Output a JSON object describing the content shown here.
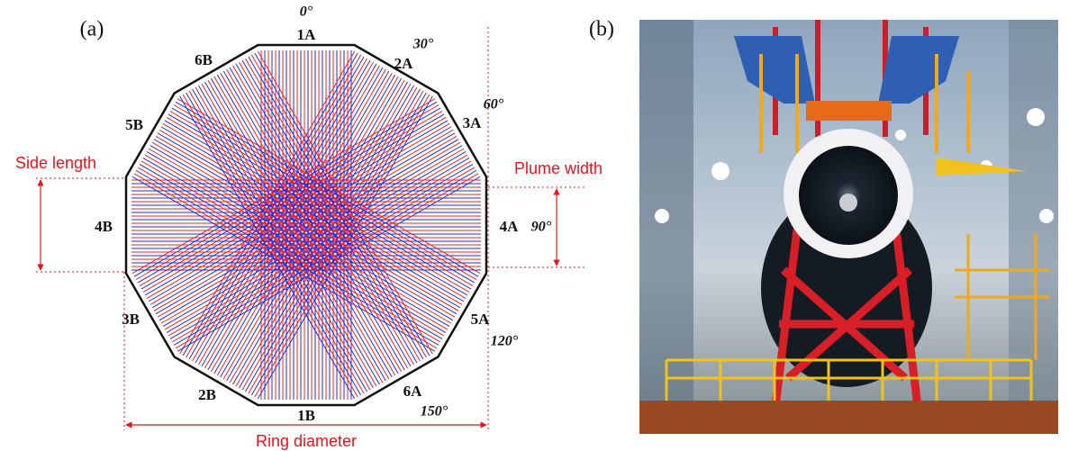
{
  "panel_a": {
    "label": "(a)",
    "ports": [
      "1A",
      "2A",
      "3A",
      "4A",
      "5A",
      "6A",
      "1B",
      "2B",
      "3B",
      "4B",
      "5B",
      "6B"
    ],
    "angles": [
      "0°",
      "30°",
      "60°",
      "90°",
      "120°",
      "150°"
    ],
    "side_length": "Side length",
    "plume_width": "Plume width",
    "ring_diameter": "Ring diameter"
  },
  "panel_b": {
    "label": "(b)"
  }
}
